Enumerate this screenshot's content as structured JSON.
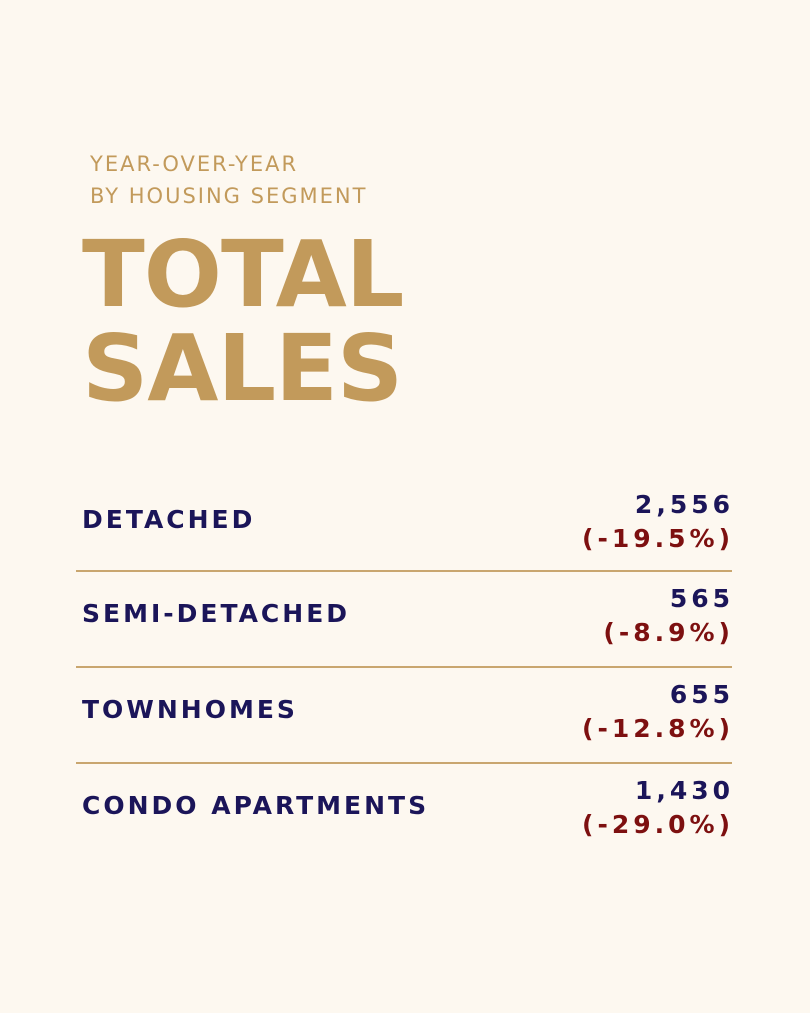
{
  "header": {
    "eyebrow_line1": "YEAR-OVER-YEAR",
    "eyebrow_line2": "BY HOUSING SEGMENT",
    "title_line1": "TOTAL",
    "title_line2": "SALES"
  },
  "segments": [
    {
      "label": "DETACHED",
      "value": "2,556",
      "change": "(-19.5%)"
    },
    {
      "label": "SEMI-DETACHED",
      "value": "565",
      "change": "(-8.9%)"
    },
    {
      "label": "TOWNHOMES",
      "value": "655",
      "change": "(-12.8%)"
    },
    {
      "label": "CONDO APARTMENTS",
      "value": "1,430",
      "change": "(-29.0%)"
    }
  ],
  "colors": {
    "background": "#fdf8f0",
    "gold": "#c29a5b",
    "navy": "#1b1559",
    "red": "#7d1010"
  }
}
